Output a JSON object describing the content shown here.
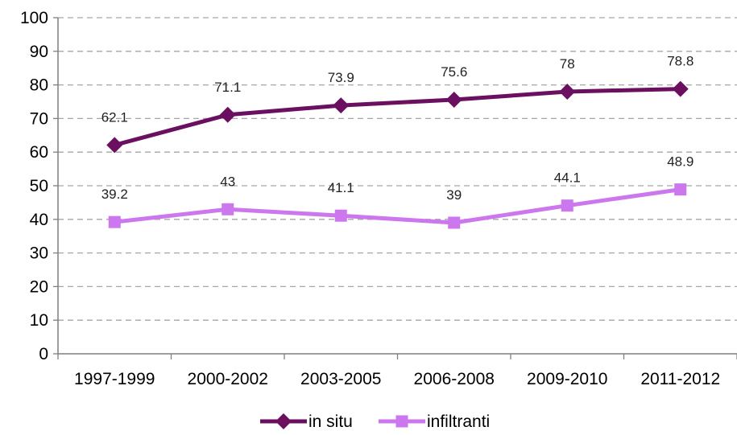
{
  "chart_data": {
    "type": "line",
    "categories": [
      "1997-1999",
      "2000-2002",
      "2003-2005",
      "2006-2008",
      "2009-2010",
      "2011-2012"
    ],
    "series": [
      {
        "name": "in situ",
        "values": [
          62.1,
          71.1,
          73.9,
          75.6,
          78,
          78.8
        ],
        "labels": [
          "62.1",
          "71.1",
          "73.9",
          "75.6",
          "78",
          "78.8"
        ],
        "color": "#6B1060",
        "marker": "diamond"
      },
      {
        "name": "infiltranti",
        "values": [
          39.2,
          43,
          41.1,
          39,
          44.1,
          48.9
        ],
        "labels": [
          "39.2",
          "43",
          "41.1",
          "39",
          "44.1",
          "48.9"
        ],
        "color": "#CC77EE",
        "marker": "square"
      }
    ],
    "ylim": [
      0,
      100
    ],
    "yticks": [
      "0",
      "10",
      "20",
      "30",
      "40",
      "50",
      "60",
      "70",
      "80",
      "90",
      "100"
    ],
    "grid": true,
    "legend_position": "bottom",
    "title": "",
    "xlabel": "",
    "ylabel": ""
  }
}
